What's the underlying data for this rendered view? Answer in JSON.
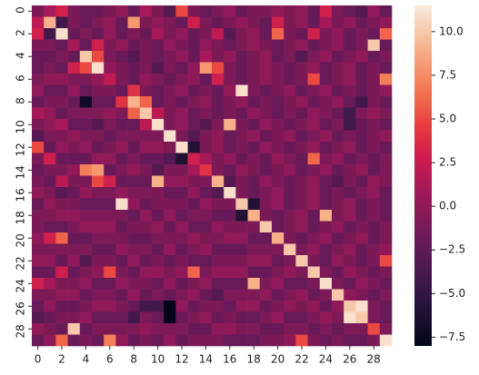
{
  "chart_data": {
    "type": "heatmap",
    "colormap": "rocket",
    "x_labels": [
      0,
      null,
      2,
      null,
      4,
      null,
      6,
      null,
      8,
      null,
      10,
      null,
      12,
      null,
      14,
      null,
      16,
      null,
      18,
      null,
      20,
      null,
      22,
      null,
      24,
      null,
      26,
      null,
      28,
      null
    ],
    "y_labels": [
      0,
      null,
      2,
      null,
      4,
      null,
      6,
      null,
      8,
      null,
      10,
      null,
      12,
      null,
      14,
      null,
      16,
      null,
      18,
      null,
      20,
      null,
      22,
      null,
      24,
      null,
      26,
      null,
      28,
      null
    ],
    "values": [
      [
        -1,
        1,
        3,
        -1,
        -2,
        -2,
        -1,
        0,
        -2,
        1,
        -1,
        -3,
        5,
        -1,
        -2,
        -1,
        0,
        -2,
        -1,
        -1,
        0,
        -1,
        0,
        -2,
        3,
        -1,
        -2,
        -3,
        0,
        -2
      ],
      [
        2,
        9,
        -4,
        -1,
        -2,
        -1,
        0,
        -2,
        8,
        -1,
        0,
        -1,
        -2,
        3,
        -1,
        -2,
        -1,
        0,
        -1,
        -2,
        3,
        -1,
        0,
        -2,
        1,
        -1,
        0,
        -2,
        -1,
        0
      ],
      [
        3,
        -4,
        11,
        -2,
        -1,
        -2,
        0,
        -2,
        -1,
        -2,
        1,
        -1,
        0,
        -2,
        -1,
        2,
        -3,
        -1,
        0,
        -2,
        6,
        -1,
        -2,
        3,
        -1,
        0,
        -2,
        -1,
        -2,
        6
      ],
      [
        -1,
        -1,
        -2,
        1,
        -2,
        3,
        -1,
        0,
        -2,
        -1,
        -2,
        0,
        -1,
        -2,
        0,
        -1,
        -2,
        -1,
        0,
        -1,
        -2,
        -1,
        0,
        -2,
        -1,
        0,
        -2,
        -1,
        10,
        -2
      ],
      [
        -2,
        -2,
        -1,
        -2,
        10,
        5,
        -1,
        -2,
        -3,
        -1,
        -2,
        -1,
        0,
        -2,
        1,
        -1,
        0,
        -2,
        -1,
        0,
        -2,
        -1,
        -3,
        -1,
        0,
        -2,
        -1,
        0,
        -2,
        -1
      ],
      [
        -2,
        -1,
        -2,
        3,
        5,
        11,
        0,
        -1,
        -2,
        -1,
        -3,
        -1,
        -2,
        0,
        8,
        5,
        -1,
        -2,
        -1,
        0,
        -1,
        -2,
        -1,
        0,
        -2,
        -1,
        0,
        -2,
        -1,
        -2
      ],
      [
        -1,
        0,
        0,
        -1,
        -1,
        0,
        2,
        -1,
        -2,
        0,
        -1,
        -2,
        -1,
        0,
        -2,
        3,
        -1,
        -2,
        -1,
        0,
        -1,
        -2,
        -1,
        5,
        -2,
        -1,
        0,
        -2,
        -1,
        7
      ],
      [
        0,
        -2,
        -2,
        0,
        -2,
        -1,
        -1,
        -2,
        4,
        -1,
        -2,
        -1,
        0,
        -2,
        -1,
        -2,
        0,
        11,
        -1,
        -2,
        -1,
        0,
        -2,
        -1,
        0,
        -2,
        -1,
        -2,
        -1,
        0
      ],
      [
        -2,
        -1,
        -1,
        -2,
        -7,
        -2,
        -2,
        4,
        9,
        6,
        -2,
        -1,
        -2,
        -1,
        0,
        -2,
        -1,
        0,
        -2,
        -1,
        -2,
        -1,
        0,
        -2,
        -1,
        0,
        -2,
        -4,
        -1,
        -2
      ],
      [
        1,
        0,
        -2,
        -1,
        -1,
        -1,
        0,
        -1,
        6,
        10,
        2,
        -1,
        0,
        -2,
        -1,
        -2,
        -1,
        -2,
        0,
        -1,
        -2,
        -1,
        -2,
        0,
        -1,
        -2,
        -4,
        -1,
        0,
        -1
      ],
      [
        -1,
        0,
        1,
        -2,
        -2,
        -3,
        -1,
        -2,
        -2,
        2,
        11,
        -1,
        0,
        -2,
        -3,
        -1,
        9,
        -1,
        -2,
        0,
        -1,
        -2,
        -1,
        0,
        -2,
        -1,
        -4,
        -2,
        -1,
        -2
      ],
      [
        -3,
        -1,
        -1,
        0,
        -1,
        -1,
        -2,
        -1,
        -1,
        -1,
        -1,
        11,
        -1,
        -3,
        -1,
        0,
        -2,
        -1,
        0,
        -2,
        -1,
        0,
        -2,
        -1,
        0,
        -2,
        -1,
        -2,
        -1,
        0
      ],
      [
        5,
        -2,
        0,
        -1,
        0,
        -2,
        -1,
        0,
        -2,
        0,
        0,
        -1,
        11,
        -6,
        -1,
        0,
        -2,
        -1,
        -2,
        0,
        -1,
        -2,
        -1,
        0,
        -2,
        -1,
        0,
        -2,
        -1,
        -2
      ],
      [
        -1,
        3,
        -2,
        -2,
        -2,
        0,
        0,
        -2,
        -1,
        -2,
        -2,
        -3,
        -6,
        3,
        1,
        -1,
        0,
        -2,
        -1,
        -2,
        0,
        -1,
        -2,
        6,
        -1,
        0,
        -2,
        -1,
        -2,
        -1
      ],
      [
        -2,
        -1,
        -1,
        0,
        7,
        8,
        -2,
        -1,
        0,
        -1,
        -3,
        -1,
        -1,
        1,
        4,
        -1,
        -2,
        0,
        -1,
        -2,
        -1,
        0,
        -2,
        -1,
        0,
        -2,
        -1,
        0,
        -2,
        -1
      ],
      [
        -1,
        -2,
        2,
        -1,
        -1,
        5,
        3,
        -2,
        -2,
        -2,
        9,
        0,
        0,
        -1,
        -1,
        9,
        -3,
        -1,
        -2,
        0,
        -1,
        -2,
        -1,
        0,
        -2,
        -3,
        -1,
        -2,
        0,
        -1
      ],
      [
        0,
        -1,
        -3,
        -2,
        0,
        -1,
        -1,
        0,
        -1,
        -1,
        -1,
        -2,
        -2,
        0,
        -2,
        -3,
        11,
        -1,
        -2,
        -1,
        0,
        -2,
        -1,
        0,
        -2,
        -1,
        -2,
        -1,
        0,
        -2
      ],
      [
        -2,
        0,
        -1,
        -1,
        -2,
        -2,
        -2,
        11,
        0,
        -2,
        -1,
        -1,
        -1,
        -2,
        0,
        -1,
        -1,
        10,
        -6,
        -1,
        0,
        -2,
        -1,
        0,
        -2,
        -1,
        0,
        -2,
        -1,
        -2
      ],
      [
        -1,
        -1,
        0,
        0,
        -1,
        -1,
        -1,
        -1,
        -2,
        0,
        -2,
        0,
        -2,
        -1,
        -1,
        -2,
        -2,
        -6,
        9,
        -1,
        -2,
        -1,
        0,
        -2,
        9,
        -1,
        0,
        -2,
        -1,
        -2
      ],
      [
        -1,
        -2,
        -2,
        -1,
        0,
        0,
        0,
        -2,
        -1,
        -1,
        0,
        -2,
        0,
        -2,
        -2,
        0,
        -1,
        -1,
        -1,
        10,
        -2,
        -1,
        0,
        -2,
        -1,
        0,
        -2,
        -1,
        -2,
        -1
      ],
      [
        0,
        3,
        6,
        -2,
        -2,
        -1,
        -1,
        -1,
        -2,
        -2,
        -1,
        -1,
        -1,
        0,
        -1,
        -1,
        0,
        0,
        -2,
        -2,
        9,
        -1,
        -2,
        -1,
        0,
        -2,
        -1,
        0,
        -2,
        -1
      ],
      [
        -1,
        -1,
        -1,
        -1,
        -1,
        -2,
        -2,
        0,
        -1,
        -1,
        -2,
        0,
        -2,
        -1,
        0,
        -2,
        -2,
        -2,
        -1,
        -1,
        -1,
        10,
        -1,
        0,
        -2,
        -1,
        0,
        -2,
        -1,
        0
      ],
      [
        0,
        0,
        -2,
        0,
        -3,
        -1,
        -1,
        -2,
        0,
        -2,
        -1,
        -2,
        -1,
        -2,
        -2,
        -1,
        -1,
        -1,
        0,
        0,
        -2,
        -1,
        10,
        -1,
        -2,
        0,
        -1,
        -2,
        -1,
        5
      ],
      [
        -2,
        -2,
        3,
        -2,
        -1,
        0,
        5,
        -1,
        -2,
        0,
        0,
        -1,
        0,
        6,
        -1,
        0,
        0,
        0,
        -2,
        -2,
        -1,
        0,
        -1,
        10,
        -1,
        -2,
        0,
        -1,
        -2,
        -1
      ],
      [
        3,
        1,
        -1,
        -1,
        0,
        -2,
        -2,
        0,
        -1,
        -1,
        -2,
        0,
        -2,
        -1,
        0,
        -2,
        -2,
        -2,
        9,
        -1,
        0,
        -2,
        -2,
        -1,
        11,
        -1,
        -2,
        0,
        -1,
        -2
      ],
      [
        -1,
        -1,
        0,
        0,
        -2,
        -1,
        -1,
        -2,
        0,
        -2,
        -1,
        -2,
        -1,
        0,
        -2,
        -3,
        -1,
        -1,
        -1,
        0,
        -2,
        -1,
        0,
        -2,
        -1,
        10,
        0,
        -1,
        -2,
        -1
      ],
      [
        -2,
        0,
        -2,
        -2,
        -1,
        0,
        0,
        -1,
        -2,
        -4,
        -4,
        -8,
        0,
        -2,
        -1,
        -1,
        -2,
        0,
        0,
        -2,
        -1,
        0,
        -1,
        0,
        -2,
        0,
        10,
        11,
        -1,
        -2
      ],
      [
        -3,
        -2,
        -1,
        -1,
        0,
        -2,
        -2,
        -2,
        -4,
        -1,
        -2,
        -8,
        -2,
        -1,
        0,
        -2,
        -1,
        -2,
        -2,
        -1,
        0,
        -2,
        -2,
        -1,
        0,
        -1,
        11,
        10,
        -1,
        -2
      ],
      [
        0,
        -1,
        -2,
        10,
        -2,
        -1,
        -1,
        -1,
        -1,
        0,
        -1,
        -1,
        -1,
        -2,
        -2,
        0,
        0,
        -1,
        -1,
        -2,
        -2,
        -1,
        -1,
        -2,
        -1,
        -2,
        -1,
        -1,
        5,
        -1
      ],
      [
        -2,
        0,
        6,
        -2,
        -1,
        -2,
        7,
        0,
        -2,
        -1,
        -2,
        0,
        -2,
        -1,
        -1,
        -1,
        -2,
        -2,
        -2,
        -1,
        -1,
        0,
        5,
        -1,
        -2,
        -1,
        -2,
        -2,
        -1,
        11
      ]
    ],
    "clim": [
      -8,
      11.5
    ],
    "colorbar_ticks": [
      {
        "value": 10,
        "label": "10.0"
      },
      {
        "value": 7.5,
        "label": "7.5"
      },
      {
        "value": 5,
        "label": "5.0"
      },
      {
        "value": 2.5,
        "label": "2.5"
      },
      {
        "value": 0,
        "label": "0.0"
      },
      {
        "value": -2.5,
        "label": "−2.5"
      },
      {
        "value": -5,
        "label": "−5.0"
      },
      {
        "value": -7.5,
        "label": "−7.5"
      }
    ]
  }
}
